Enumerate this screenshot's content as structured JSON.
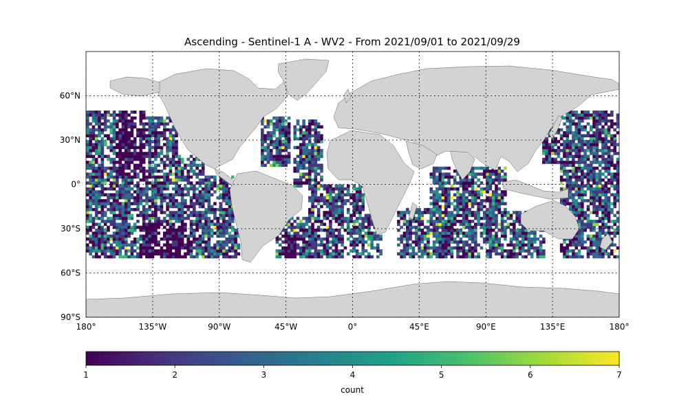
{
  "chart_data": {
    "type": "heatmap",
    "title": "Ascending - Sentinel-1 A - WV2 - From 2021/09/01 to 2021/09/29",
    "projection": "plate-carree",
    "x_range": [
      -180,
      180
    ],
    "y_range": [
      -90,
      90
    ],
    "x_ticks": [
      {
        "value": -180,
        "label": "180°"
      },
      {
        "value": -135,
        "label": "135°W"
      },
      {
        "value": -90,
        "label": "90°W"
      },
      {
        "value": -45,
        "label": "45°W"
      },
      {
        "value": 0,
        "label": "0°"
      },
      {
        "value": 45,
        "label": "45°E"
      },
      {
        "value": 90,
        "label": "90°E"
      },
      {
        "value": 135,
        "label": "135°E"
      },
      {
        "value": 180,
        "label": "180°"
      }
    ],
    "y_ticks": [
      {
        "value": 60,
        "label": "60°N"
      },
      {
        "value": 30,
        "label": "30°N"
      },
      {
        "value": 0,
        "label": "0°"
      },
      {
        "value": -30,
        "label": "30°S"
      },
      {
        "value": -60,
        "label": "60°S"
      },
      {
        "value": -90,
        "label": "90°S"
      }
    ],
    "gridlines": "dotted",
    "cell_size_deg": 2,
    "data_lat_range": [
      -50,
      50
    ],
    "coverage_regions": [
      {
        "lon": [
          -180,
          -170
        ],
        "lat": [
          -50,
          50
        ]
      },
      {
        "lon": [
          -170,
          -140
        ],
        "lat": [
          -50,
          50
        ]
      },
      {
        "lon": [
          -140,
          -118
        ],
        "lat": [
          -50,
          46
        ]
      },
      {
        "lon": [
          -118,
          -100
        ],
        "lat": [
          -50,
          20
        ]
      },
      {
        "lon": [
          -100,
          -80
        ],
        "lat": [
          -50,
          6
        ]
      },
      {
        "lon": [
          -80,
          -76
        ],
        "lat": [
          -50,
          -30
        ]
      },
      {
        "lon": [
          -62,
          -42
        ],
        "lat": [
          12,
          46
        ]
      },
      {
        "lon": [
          -40,
          -20
        ],
        "lat": [
          -2,
          44
        ]
      },
      {
        "lon": [
          -52,
          -10
        ],
        "lat": [
          -50,
          -22
        ]
      },
      {
        "lon": [
          -30,
          8
        ],
        "lat": [
          -50,
          0
        ]
      },
      {
        "lon": [
          8,
          20
        ],
        "lat": [
          -50,
          -20
        ]
      },
      {
        "lon": [
          30,
          58
        ],
        "lat": [
          -50,
          -16
        ]
      },
      {
        "lon": [
          52,
          74
        ],
        "lat": [
          -50,
          12
        ]
      },
      {
        "lon": [
          74,
          104
        ],
        "lat": [
          -50,
          12
        ]
      },
      {
        "lon": [
          90,
          130
        ],
        "lat": [
          -50,
          -18
        ]
      },
      {
        "lon": [
          128,
          180
        ],
        "lat": [
          14,
          50
        ]
      },
      {
        "lon": [
          140,
          180
        ],
        "lat": [
          -50,
          14
        ]
      }
    ],
    "low_count_regions": [
      {
        "lon": [
          -160,
          -140
        ],
        "lat": [
          4,
          50
        ]
      },
      {
        "lon": [
          -145,
          -110
        ],
        "lat": [
          -50,
          -26
        ]
      },
      {
        "lon": [
          -48,
          -38
        ],
        "lat": [
          -50,
          -34
        ]
      }
    ],
    "colorbar": {
      "label": "count",
      "min": 1,
      "max": 7,
      "ticks": [
        "1",
        "2",
        "3",
        "4",
        "5",
        "6",
        "7"
      ],
      "colormap": "viridis",
      "colors": [
        "#440154",
        "#46327e",
        "#365c8d",
        "#277f8e",
        "#1fa187",
        "#4ac16d",
        "#a0da39",
        "#fde725"
      ]
    },
    "land_color": "#d3d3d3",
    "ocean_color": "#ffffff"
  }
}
